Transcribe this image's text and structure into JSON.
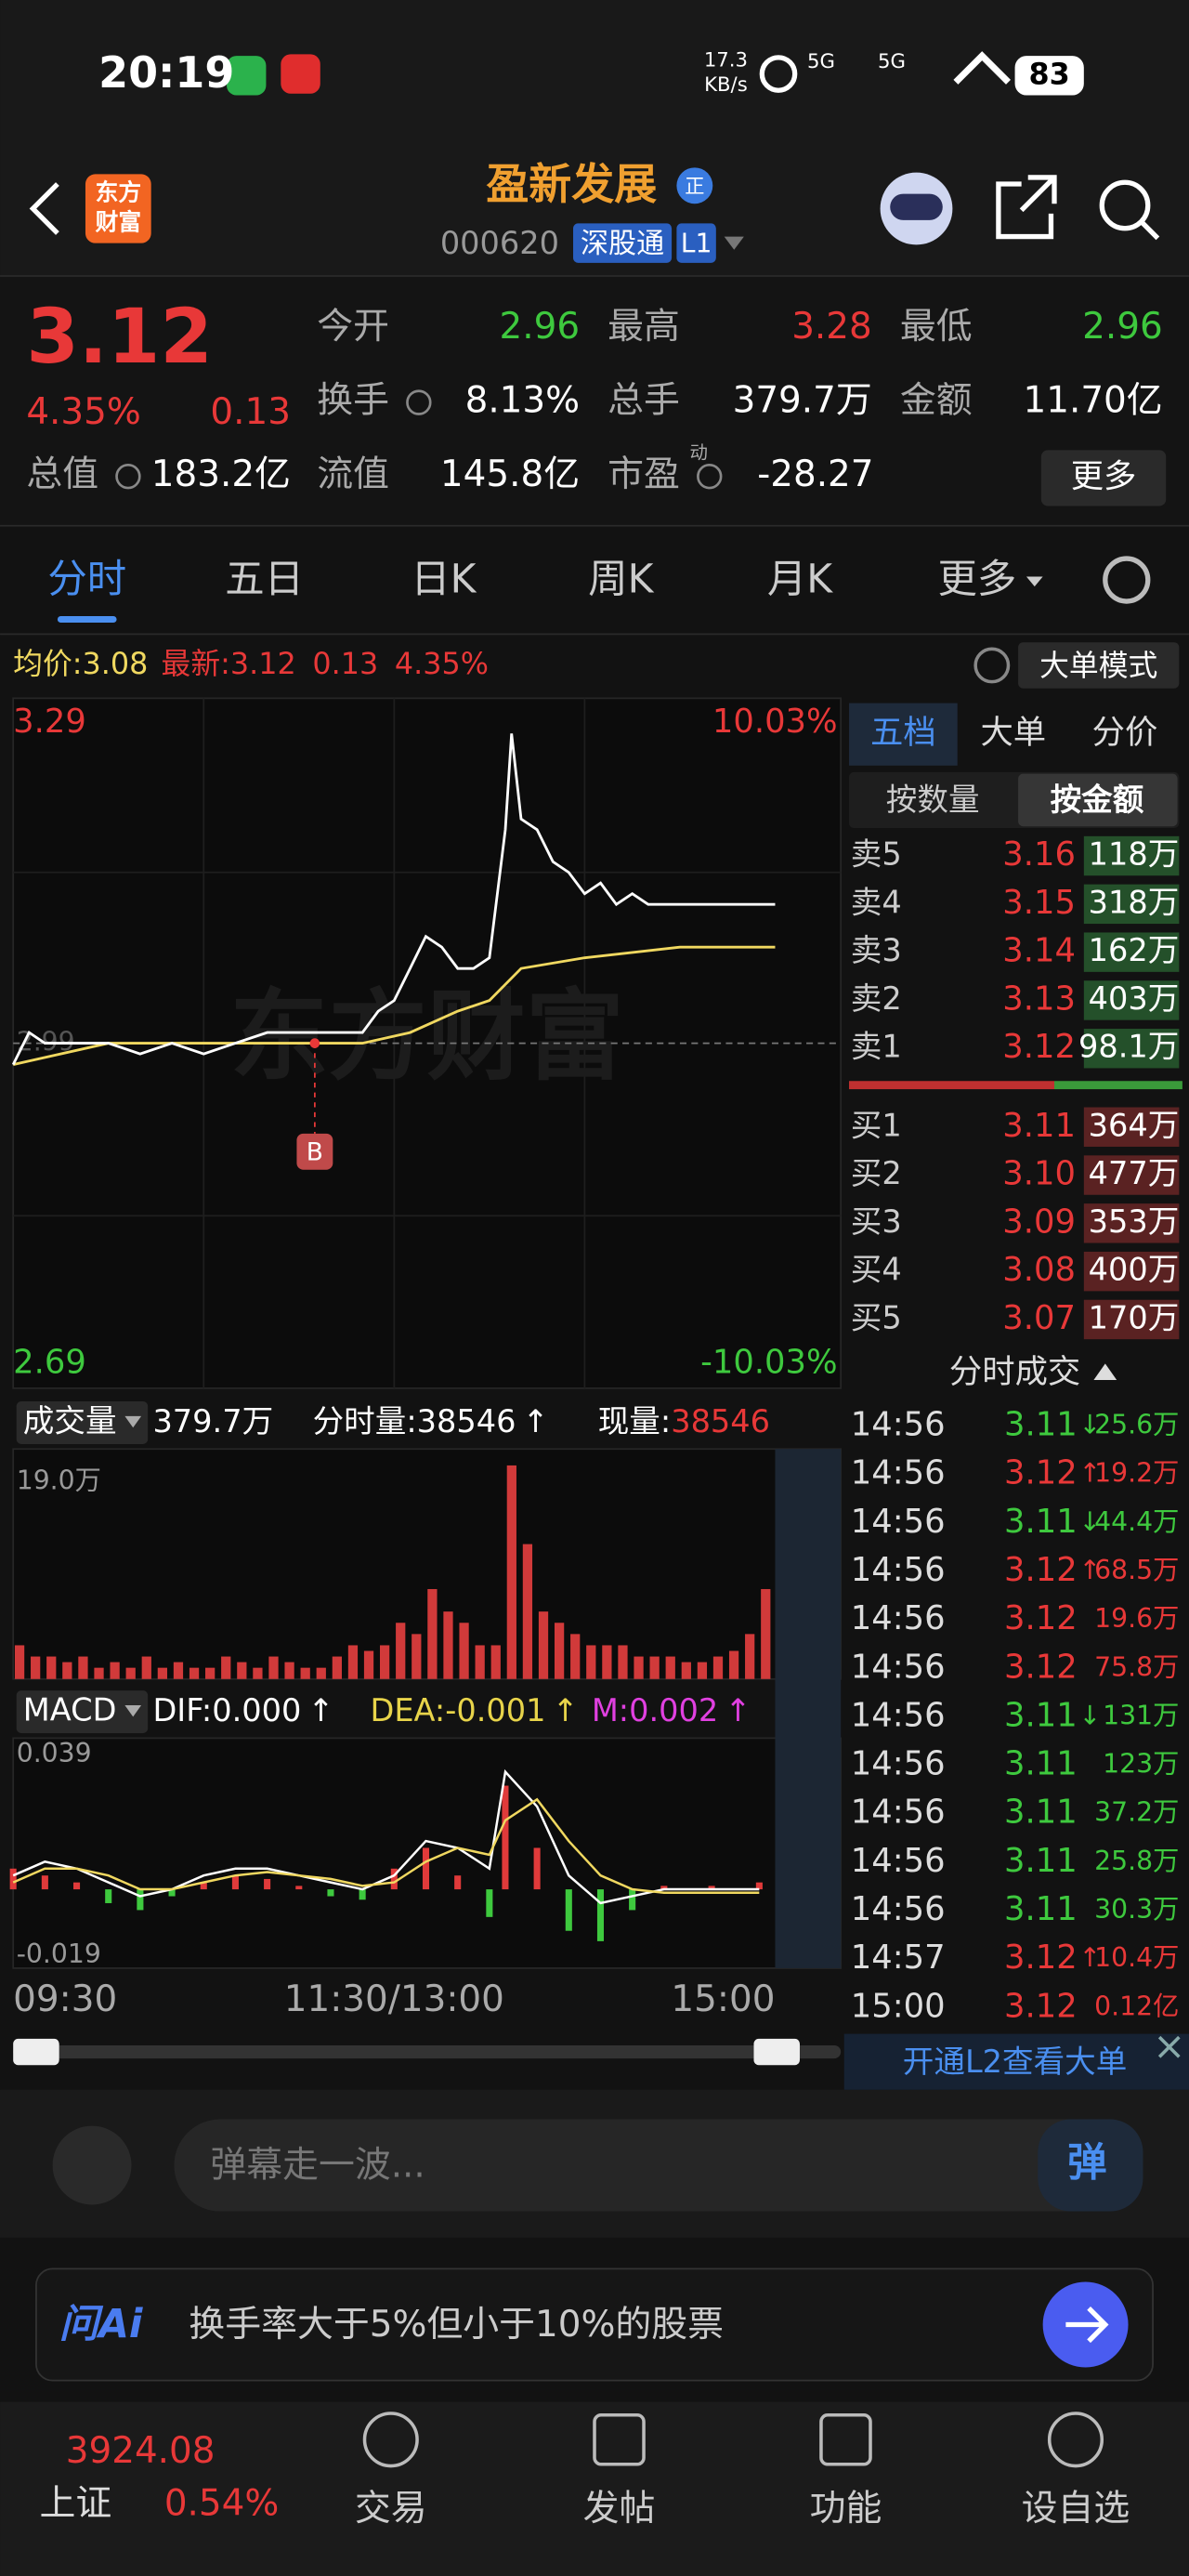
{
  "status_bar": {
    "time": "20:19",
    "net_speed": "17.3",
    "net_unit": "KB/s",
    "signal_1": "5G",
    "signal_2": "5G",
    "battery": "83"
  },
  "header": {
    "logo": [
      "东方",
      "财富"
    ],
    "title": "盈新发展",
    "badge": "正",
    "code": "000620",
    "tag": "深股通",
    "level": "L1"
  },
  "quote": {
    "price": "3.12",
    "change_pct": "4.35%",
    "change": "0.13",
    "fields": [
      {
        "label": "今开",
        "value": "2.96",
        "color": "#3ec93e"
      },
      {
        "label": "最高",
        "value": "3.28",
        "color": "#e83838"
      },
      {
        "label": "最低",
        "value": "2.96",
        "color": "#3ec93e"
      },
      {
        "label": "换手",
        "value": "8.13%",
        "color": "#ffffff"
      },
      {
        "label": "总手",
        "value": "379.7万",
        "color": "#ffffff"
      },
      {
        "label": "金额",
        "value": "11.70亿",
        "color": "#ffffff"
      },
      {
        "label": "总值",
        "value": "183.2亿",
        "color": "#ffffff"
      },
      {
        "label": "流值",
        "value": "145.8亿",
        "color": "#ffffff"
      },
      {
        "label": "市盈",
        "note": "动",
        "value": "-28.27",
        "color": "#ffffff"
      }
    ],
    "more": "更多"
  },
  "tabs": [
    "分时",
    "五日",
    "日K",
    "周K",
    "月K",
    "更多"
  ],
  "info_line": {
    "avg_label": "均价:",
    "avg": "3.08",
    "last_label": "最新:",
    "last": "3.12",
    "change": "0.13",
    "change_pct": "4.35%",
    "mode": "大单模式"
  },
  "intraday": {
    "type": "line",
    "ylim": [
      2.69,
      3.29
    ],
    "yticks": [
      3.29,
      2.69
    ],
    "pct_ticks": [
      "10.03%",
      "-10.03%"
    ],
    "ref_price": 2.99,
    "xlim": [
      0,
      240
    ],
    "xticks": [
      {
        "value": 0,
        "label": "09:30"
      },
      {
        "value": 120,
        "label": "11:30/13:00"
      },
      {
        "value": 240,
        "label": "15:00"
      }
    ],
    "price": {
      "color": "#ffffff",
      "x": [
        0,
        5,
        10,
        20,
        30,
        40,
        50,
        60,
        70,
        80,
        90,
        100,
        110,
        115,
        120,
        125,
        130,
        135,
        140,
        145,
        150,
        155,
        157,
        160,
        165,
        170,
        175,
        180,
        185,
        190,
        195,
        200,
        210,
        220,
        230,
        240
      ],
      "values": [
        2.97,
        3.0,
        2.99,
        2.99,
        2.99,
        2.98,
        2.99,
        2.98,
        2.99,
        3.0,
        3.0,
        3.0,
        3.0,
        3.02,
        3.03,
        3.06,
        3.09,
        3.08,
        3.06,
        3.06,
        3.07,
        3.19,
        3.28,
        3.2,
        3.19,
        3.16,
        3.15,
        3.13,
        3.14,
        3.12,
        3.13,
        3.12,
        3.12,
        3.12,
        3.12,
        3.12
      ]
    },
    "avg": {
      "color": "#f0d860",
      "x": [
        0,
        30,
        60,
        90,
        110,
        125,
        140,
        150,
        160,
        180,
        210,
        240
      ],
      "values": [
        2.97,
        2.99,
        2.99,
        2.99,
        2.99,
        3.0,
        3.02,
        3.03,
        3.06,
        3.07,
        3.08,
        3.08
      ]
    },
    "marker": {
      "x": 95,
      "label": "B"
    },
    "watermark": "东方财富"
  },
  "volume": {
    "type": "bar",
    "label": "成交量",
    "total": "379.7万",
    "period_label": "分时量:",
    "period": "38546",
    "now_label": "现量:",
    "now": "38546",
    "arrow": "↑",
    "color": "#d13a3a",
    "ylim": [
      0,
      19.0
    ],
    "yticks": [
      {
        "value": 19.0,
        "label": "19.0万"
      }
    ],
    "x": [
      0,
      5,
      10,
      15,
      20,
      25,
      30,
      35,
      40,
      45,
      50,
      55,
      60,
      65,
      70,
      75,
      80,
      85,
      90,
      95,
      100,
      105,
      110,
      115,
      120,
      125,
      130,
      135,
      140,
      145,
      150,
      155,
      160,
      165,
      170,
      175,
      180,
      185,
      190,
      195,
      200,
      205,
      210,
      215,
      220,
      225,
      230,
      235
    ],
    "values": [
      3,
      2,
      2,
      1.5,
      2,
      1,
      1.5,
      1,
      2,
      1,
      1.5,
      1,
      1,
      2,
      1.5,
      1,
      2,
      1.5,
      1,
      1,
      2,
      3,
      2.5,
      3,
      5,
      4,
      8,
      6,
      5,
      3,
      3,
      19,
      12,
      6,
      5,
      4,
      3,
      3,
      3,
      2,
      2,
      2,
      1.5,
      1.5,
      2,
      2.5,
      4,
      8
    ]
  },
  "macd": {
    "type": "bar",
    "label": "MACD",
    "dif_label": "DIF:",
    "dif": "0.000",
    "dea_label": "DEA:",
    "dea": "-0.001",
    "m_label": "M:",
    "m": "0.002",
    "arrow": "↑",
    "ylim": [
      -0.019,
      0.039
    ],
    "yticks": [
      0.039,
      -0.019
    ],
    "up_color": "#e03a3a",
    "down_color": "#3ec93e",
    "dif_color": "#ffffff",
    "dea_color": "#f0d860",
    "x": [
      0,
      10,
      20,
      30,
      40,
      50,
      60,
      70,
      80,
      90,
      100,
      110,
      120,
      130,
      140,
      150,
      155,
      165,
      175,
      185,
      195,
      205,
      220,
      235
    ],
    "hist": [
      0.006,
      0.004,
      0.002,
      -0.004,
      -0.006,
      -0.002,
      0.002,
      0.004,
      0.003,
      0.001,
      -0.002,
      -0.003,
      0.006,
      0.012,
      0.004,
      -0.008,
      0.03,
      0.012,
      -0.012,
      -0.015,
      -0.006,
      0.001,
      0.001,
      0.002
    ],
    "dif_line": [
      0.004,
      0.008,
      0.006,
      0.002,
      -0.002,
      0.0,
      0.004,
      0.006,
      0.006,
      0.004,
      0.002,
      0.0,
      0.004,
      0.014,
      0.012,
      0.006,
      0.034,
      0.024,
      0.004,
      -0.004,
      -0.002,
      0.0,
      0.0,
      0.0
    ],
    "dea_line": [
      0.002,
      0.006,
      0.006,
      0.004,
      0.0,
      0.0,
      0.002,
      0.004,
      0.005,
      0.004,
      0.003,
      0.001,
      0.002,
      0.008,
      0.012,
      0.01,
      0.02,
      0.026,
      0.014,
      0.004,
      0.0,
      -0.001,
      -0.001,
      -0.001
    ]
  },
  "order_book": {
    "tabs": [
      "五档",
      "大单",
      "分价"
    ],
    "modes": [
      "按数量",
      "按金额"
    ],
    "asks": [
      {
        "label": "卖5",
        "price": "3.16",
        "amount": "118万"
      },
      {
        "label": "卖4",
        "price": "3.15",
        "amount": "318万"
      },
      {
        "label": "卖3",
        "price": "3.14",
        "amount": "162万"
      },
      {
        "label": "卖2",
        "price": "3.13",
        "amount": "403万"
      },
      {
        "label": "卖1",
        "price": "3.12",
        "amount": "98.1万"
      }
    ],
    "bids": [
      {
        "label": "买1",
        "price": "3.11",
        "amount": "364万"
      },
      {
        "label": "买2",
        "price": "3.10",
        "amount": "477万"
      },
      {
        "label": "买3",
        "price": "3.09",
        "amount": "353万"
      },
      {
        "label": "买4",
        "price": "3.08",
        "amount": "400万"
      },
      {
        "label": "买5",
        "price": "3.07",
        "amount": "170万"
      }
    ]
  },
  "trades": {
    "title": "分时成交",
    "rows": [
      {
        "time": "14:56",
        "price": "3.11",
        "dir": "↓",
        "volume": "25.6万",
        "color": "#3ec93e"
      },
      {
        "time": "14:56",
        "price": "3.12",
        "dir": "↑",
        "volume": "19.2万",
        "color": "#e83838"
      },
      {
        "time": "14:56",
        "price": "3.11",
        "dir": "↓",
        "volume": "44.4万",
        "color": "#3ec93e"
      },
      {
        "time": "14:56",
        "price": "3.12",
        "dir": "↑",
        "volume": "68.5万",
        "color": "#e83838"
      },
      {
        "time": "14:56",
        "price": "3.12",
        "volume": "19.6万",
        "color": "#e83838"
      },
      {
        "time": "14:56",
        "price": "3.12",
        "volume": "75.8万",
        "color": "#e83838"
      },
      {
        "time": "14:56",
        "price": "3.11",
        "dir": "↓",
        "volume": "131万",
        "color": "#3ec93e"
      },
      {
        "time": "14:56",
        "price": "3.11",
        "volume": "123万",
        "color": "#3ec93e"
      },
      {
        "time": "14:56",
        "price": "3.11",
        "volume": "37.2万",
        "color": "#3ec93e"
      },
      {
        "time": "14:56",
        "price": "3.11",
        "volume": "25.8万",
        "color": "#3ec93e"
      },
      {
        "time": "14:56",
        "price": "3.11",
        "volume": "30.3万",
        "color": "#3ec93e"
      },
      {
        "time": "14:57",
        "price": "3.12",
        "dir": "↑",
        "volume": "10.4万",
        "color": "#e83838"
      },
      {
        "time": "15:00",
        "price": "3.12",
        "volume": "0.12亿",
        "color": "#e83838"
      }
    ]
  },
  "l2_banner": "开通L2查看大单",
  "comment_bar": {
    "placeholder": "弹幕走一波...",
    "button": "弹"
  },
  "ai_bar": {
    "logo": "问Ai",
    "prompt": "换手率大于5%但小于10%的股票"
  },
  "nav": {
    "index_value": "3924.08",
    "index_name": "上证",
    "index_change": "0.54%",
    "items": [
      "交易",
      "发帖",
      "功能",
      "设自选"
    ]
  }
}
